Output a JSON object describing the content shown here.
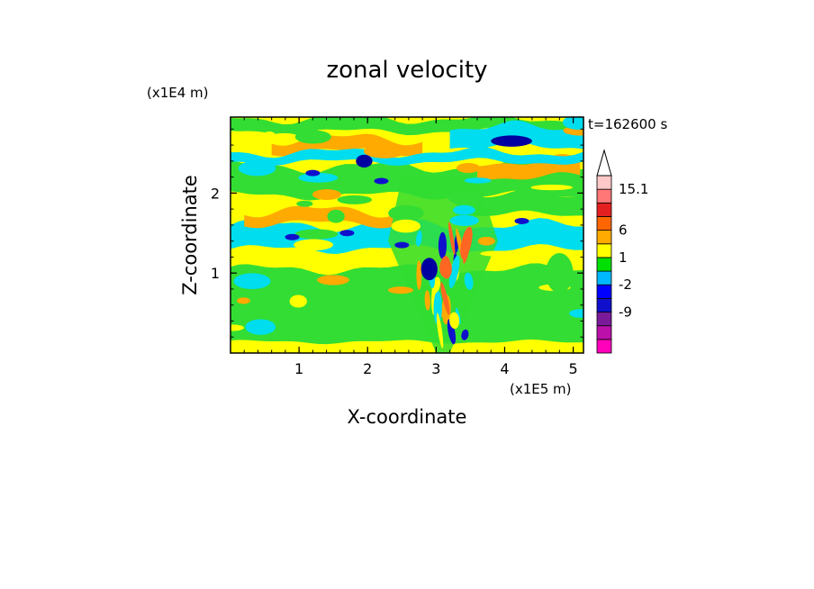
{
  "chart_data": {
    "type": "heatmap",
    "title": "zonal velocity",
    "xlabel": "X-coordinate",
    "ylabel": "Z-coordinate",
    "x_scale_label": "(x1E5 m)",
    "y_scale_label": "(x1E4 m)",
    "time_label": "t=162600 s",
    "xlim": [
      0,
      5.15
    ],
    "ylim": [
      0,
      2.95
    ],
    "x_ticks": [
      1,
      2,
      3,
      4,
      5
    ],
    "y_ticks": [
      1,
      2
    ],
    "x_tick_labels": [
      "1",
      "2",
      "3",
      "4",
      "5"
    ],
    "y_tick_labels": [
      "1",
      "2"
    ],
    "grid": false,
    "colorbar": {
      "placement": "right",
      "levels": [
        {
          "color": "#ff00bb"
        },
        {
          "color": "#bb11aa"
        },
        {
          "color": "#7a1a9a"
        },
        {
          "color": "#1010cc",
          "label": "-9"
        },
        {
          "color": "#0000ff"
        },
        {
          "color": "#00b8ff",
          "label": "-2"
        },
        {
          "color": "#00e000"
        },
        {
          "color": "#ffff00",
          "label": "1"
        },
        {
          "color": "#ffaa00"
        },
        {
          "color": "#ff6600",
          "label": "6"
        },
        {
          "color": "#e52020"
        },
        {
          "color": "#ff7777"
        },
        {
          "color": "#ffc8c8",
          "label": "15.1"
        }
      ],
      "tick_labels": [
        "15.1",
        "6",
        "1",
        "-2",
        "-9"
      ],
      "overflow_arrow_color": "#ffffff"
    },
    "field_colors": {
      "yellow": "#ffff00",
      "green": "#33dd33",
      "cyan": "#00ddee",
      "orange": "#ffaa00",
      "red_orange": "#ff6622",
      "blue": "#1010cc",
      "dark_blue": "#0000a0"
    },
    "features": [
      {
        "kind": "band",
        "color": "cyan",
        "x": [
          0,
          5.15
        ],
        "z_center": 1.45,
        "z_half": 0.15
      },
      {
        "kind": "band",
        "color": "cyan",
        "x": [
          3.2,
          5.15
        ],
        "z_center": 2.7,
        "z_half": 0.12
      },
      {
        "kind": "band",
        "color": "orange",
        "x": [
          0.6,
          2.8
        ],
        "z_center": 2.6,
        "z_half": 0.08
      },
      {
        "kind": "band",
        "color": "orange",
        "x": [
          0.2,
          2.6
        ],
        "z_center": 1.7,
        "z_half": 0.08
      },
      {
        "kind": "band",
        "color": "orange",
        "x": [
          3.6,
          5.1
        ],
        "z_center": 2.3,
        "z_half": 0.1
      },
      {
        "kind": "blob",
        "color": "dark_blue",
        "x": 4.1,
        "z": 2.65,
        "rx": 0.3,
        "rz": 0.07
      },
      {
        "kind": "blob",
        "color": "dark_blue",
        "x": 1.95,
        "z": 2.4,
        "rx": 0.12,
        "rz": 0.08
      },
      {
        "kind": "blob",
        "color": "dark_blue",
        "x": 2.9,
        "z": 1.05,
        "rx": 0.12,
        "rz": 0.14
      },
      {
        "kind": "blob",
        "color": "red_orange",
        "x": 3.15,
        "z": 1.05,
        "rx": 0.08,
        "rz": 0.12
      },
      {
        "kind": "blob",
        "color": "green",
        "x": 4.8,
        "z": 1.0,
        "rx": 0.2,
        "rz": 0.25
      }
    ]
  }
}
